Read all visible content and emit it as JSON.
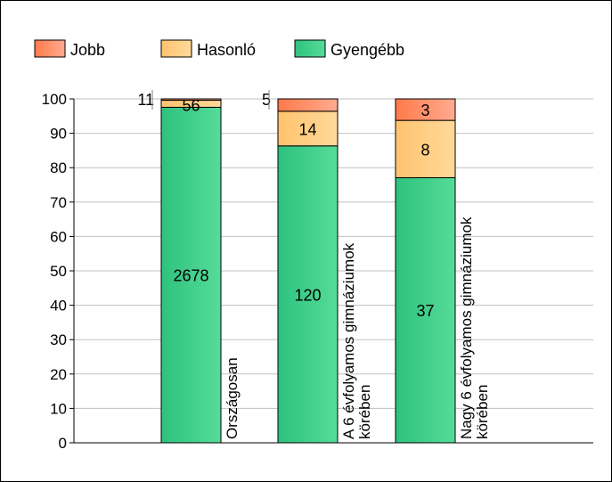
{
  "chart_data": {
    "type": "bar",
    "stacked": "percent",
    "categories": [
      "Országosan",
      "A 6 évfolyamos gimnáziumok körében",
      "Nagy 6 évfolyamos gimnáziumok körében"
    ],
    "category_lines": [
      [
        "Országosan"
      ],
      [
        "A 6 évfolyamos gimnáziumok",
        "körében"
      ],
      [
        "Nagy 6 évfolyamos gimnáziumok",
        "körében"
      ]
    ],
    "series": [
      {
        "name": "Gyengébb",
        "values": [
          2678,
          120,
          37
        ],
        "color": "#2ec27e"
      },
      {
        "name": "Hasonló",
        "values": [
          56,
          14,
          8
        ],
        "color": "#ffc36e"
      },
      {
        "name": "Jobb",
        "values": [
          11,
          5,
          3
        ],
        "color": "#ff7a4a"
      }
    ],
    "legend_order": [
      "Jobb",
      "Hasonló",
      "Gyengébb"
    ],
    "legend_placement": "top-left",
    "ylim": [
      0,
      100
    ],
    "yticks": [
      0,
      10,
      20,
      30,
      40,
      50,
      60,
      70,
      80,
      90,
      100
    ],
    "grid": true
  }
}
